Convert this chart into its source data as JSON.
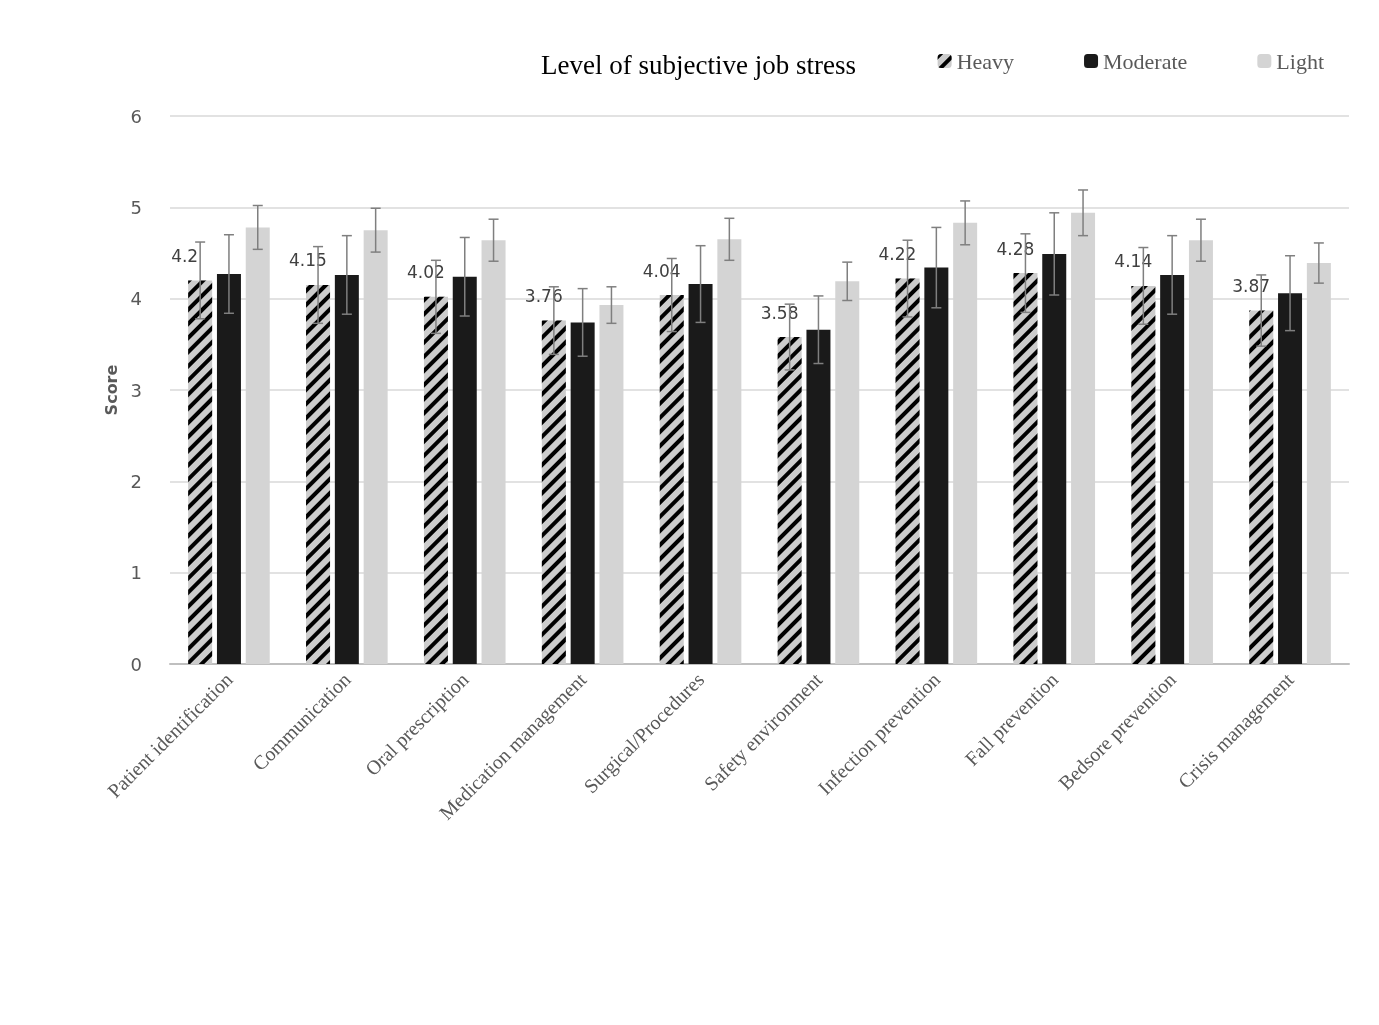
{
  "chart_data": {
    "type": "bar",
    "ylabel": "Score",
    "legend_title": "Level of subjective job stress",
    "categories": [
      "Patient identification",
      "Communication",
      "Oral prescription",
      "Medication management",
      "Surgical/Procedures",
      "Safety environment",
      "Infection prevention",
      "Fall prevention",
      "Bedsore prevention",
      "Crisis management"
    ],
    "series": [
      {
        "name": "Heavy",
        "color": "#cccccc",
        "values": [
          4.2,
          4.15,
          4.02,
          3.76,
          4.04,
          3.58,
          4.22,
          4.28,
          4.14,
          3.87
        ],
        "errors": [
          0.42,
          0.42,
          0.4,
          0.37,
          0.4,
          0.36,
          0.42,
          0.43,
          0.42,
          0.39
        ],
        "value_labels": [
          "4.2",
          "4.15",
          "4.02",
          "3.76",
          "4.04",
          "3.58",
          "4.22",
          "4.28",
          "4.14",
          "3.87"
        ]
      },
      {
        "name": "Moderate",
        "color": "#1a1a1a",
        "values": [
          4.27,
          4.26,
          4.24,
          3.74,
          4.16,
          3.66,
          4.34,
          4.49,
          4.26,
          4.06
        ],
        "errors": [
          0.43,
          0.43,
          0.43,
          0.37,
          0.42,
          0.37,
          0.44,
          0.45,
          0.43,
          0.41
        ]
      },
      {
        "name": "Light",
        "color": "#d4d4d4",
        "values": [
          4.78,
          4.75,
          4.64,
          3.93,
          4.65,
          4.19,
          4.83,
          4.94,
          4.64,
          4.39
        ],
        "errors": [
          0.24,
          0.24,
          0.23,
          0.2,
          0.23,
          0.21,
          0.24,
          0.25,
          0.23,
          0.22
        ]
      }
    ],
    "ylim": [
      0,
      6
    ],
    "yticks": [
      0,
      1,
      2,
      3,
      4,
      5,
      6
    ],
    "grid": "y",
    "legend": "top right"
  }
}
